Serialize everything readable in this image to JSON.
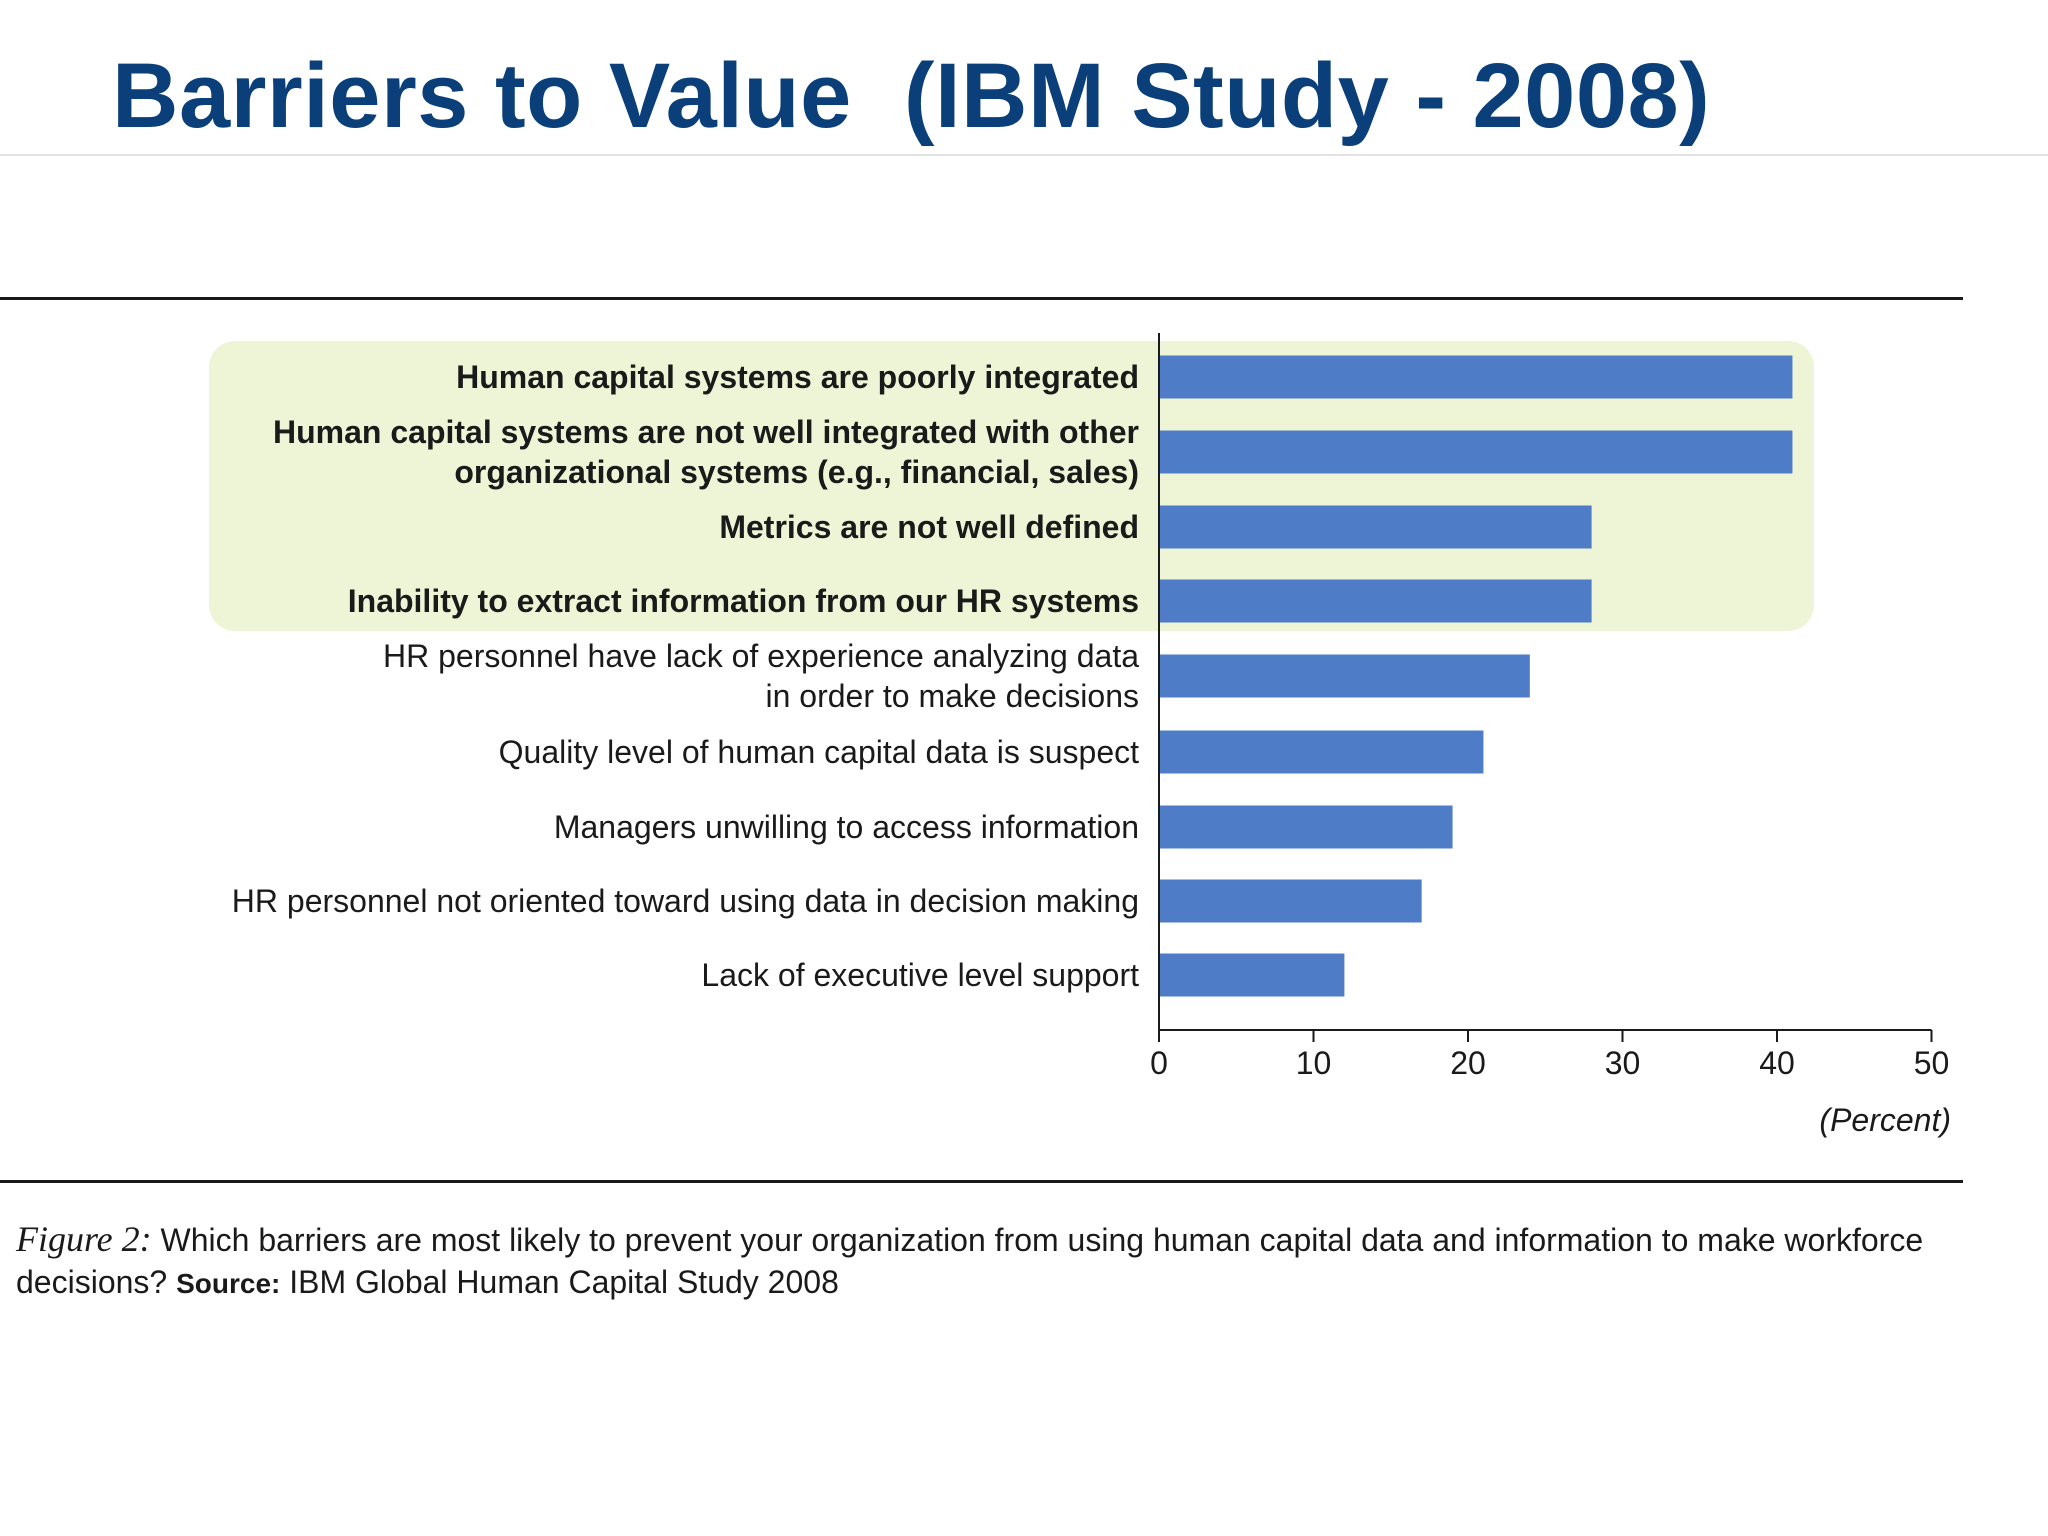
{
  "slide": {
    "title": "Barriers to Value  (IBM Study - 2008)"
  },
  "chart_data": {
    "type": "bar",
    "orientation": "horizontal",
    "categories": [
      [
        "Human capital systems are poorly integrated"
      ],
      [
        "Human capital systems are not well integrated with other",
        "organizational systems (e.g., financial, sales)"
      ],
      [
        "Metrics are not well defined"
      ],
      [
        "Inability to extract information from our HR systems"
      ],
      [
        "HR personnel have lack of experience analyzing data",
        "in order to make decisions"
      ],
      [
        "Quality level of human capital data is suspect"
      ],
      [
        "Managers unwilling to access information"
      ],
      [
        "HR personnel not oriented toward using data in decision making"
      ],
      [
        "Lack of executive level support"
      ]
    ],
    "values": [
      41,
      41,
      28,
      28,
      24,
      21,
      19,
      17,
      12
    ],
    "highlighted_count": 4,
    "xlabel": "(Percent)",
    "xlim": [
      0,
      50
    ],
    "xticks": [
      0,
      10,
      20,
      30,
      40,
      50
    ],
    "grid": false,
    "colors": {
      "bar": "#4e7cc6",
      "highlight": "#eef5d6",
      "axis": "#1a1a1a"
    }
  },
  "caption": {
    "figure_label": "Figure 2:",
    "question": " Which barriers are most likely to prevent your organization from using human capital data and information to make workforce decisions?",
    "source_label": "Source:",
    "source_text": " IBM Global Human Capital Study 2008"
  }
}
